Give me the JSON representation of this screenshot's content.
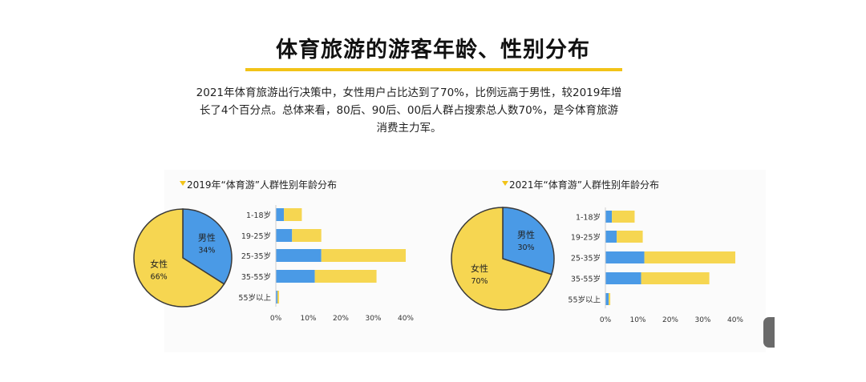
{
  "title": "体育旅游的游客年龄、性别分布",
  "summary": [
    "2021年体育旅游出行决策中，女性用户占比达到了70%，比例远高于男性，较2019年增",
    "长了4个百分点。总体来看，80后、90后、00后人群占搜索总人数70%，是今体育旅游",
    "消费主力军。"
  ],
  "colors": {
    "male": "#4a9ae6",
    "female": "#f6d651",
    "accent": "#f2c318"
  },
  "chart_data": [
    {
      "type": "pie",
      "title": "2019年“体育游”人群性别年龄分布",
      "slices": [
        {
          "label": "男性",
          "value": 34,
          "value_label": "34%"
        },
        {
          "label": "女性",
          "value": 66,
          "value_label": "66%"
        }
      ]
    },
    {
      "type": "bar",
      "orientation": "horizontal",
      "stacked": true,
      "categories": [
        "1-18岁",
        "19-25岁",
        "25-35岁",
        "35-55岁",
        "55岁以上"
      ],
      "series": [
        {
          "values": [
            2.5,
            5,
            14,
            12,
            0.5
          ]
        },
        {
          "values": [
            5.5,
            9,
            26,
            19,
            0.5
          ]
        }
      ],
      "xlim": [
        0,
        40
      ],
      "xticks": [
        "0%",
        "10%",
        "20%",
        "30%",
        "40%"
      ]
    },
    {
      "type": "pie",
      "title": "2021年“体育游”人群性别年龄分布",
      "slices": [
        {
          "label": "男性",
          "value": 30,
          "value_label": "30%"
        },
        {
          "label": "女性",
          "value": 70,
          "value_label": "70%"
        }
      ]
    },
    {
      "type": "bar",
      "orientation": "horizontal",
      "stacked": true,
      "categories": [
        "1-18岁",
        "19-25岁",
        "25-35岁",
        "35-55岁",
        "55岁以上"
      ],
      "series": [
        {
          "values": [
            2,
            3.5,
            12,
            11,
            1
          ]
        },
        {
          "values": [
            7,
            8,
            28,
            21,
            0.5
          ]
        }
      ],
      "xlim": [
        0,
        40
      ],
      "xticks": [
        "0%",
        "10%",
        "20%",
        "30%",
        "40%"
      ]
    }
  ]
}
